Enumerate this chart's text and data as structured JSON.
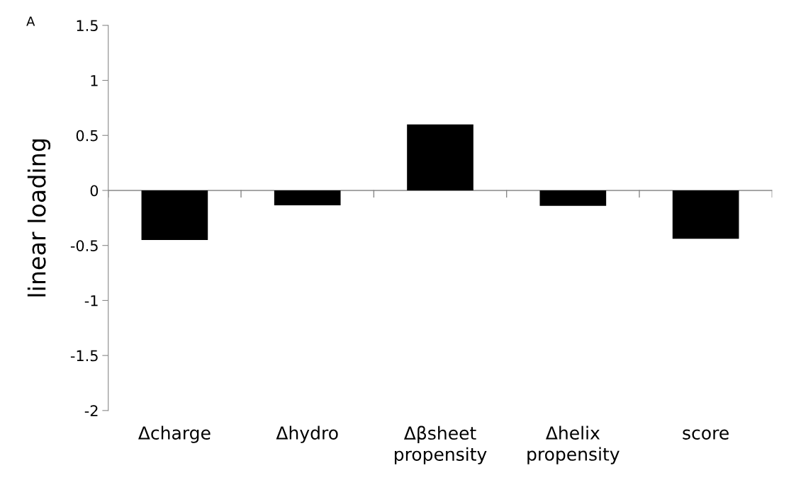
{
  "chart_data": {
    "type": "bar",
    "ylabel": "linear loading",
    "categories": [
      "Δcharge",
      "Δhydro",
      "Δβsheet\npropensity",
      "Δhelix\npropensity",
      "score"
    ],
    "values": [
      -0.45,
      -0.135,
      0.6,
      -0.14,
      -0.44
    ],
    "color": "#000000",
    "ylim": [
      -2,
      1.5
    ],
    "yticks": [
      -2,
      -1.5,
      -1,
      -0.5,
      0,
      0.5,
      1,
      1.5
    ],
    "annotations": [
      "A"
    ]
  }
}
